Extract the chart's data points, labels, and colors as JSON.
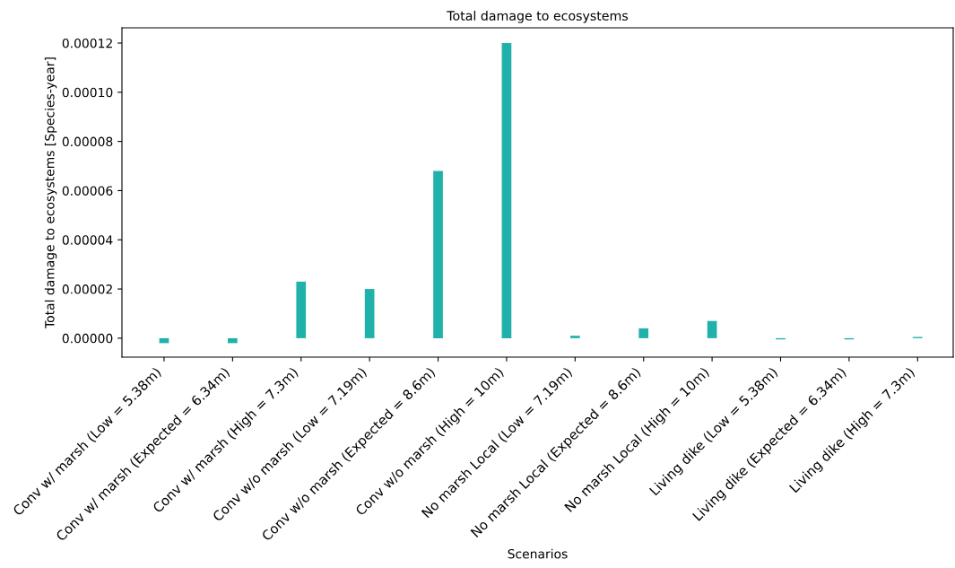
{
  "chart_data": {
    "type": "bar",
    "title": "Total damage to ecosystems",
    "xlabel": "Scenarios",
    "ylabel": "Total damage to ecosystems [Species-year]",
    "categories": [
      "Conv w/ marsh (Low = 5.38m)",
      "Conv w/ marsh (Expected = 6.34m)",
      "Conv w/ marsh (High = 7.3m)",
      "Conv w/o marsh (Low = 7.19m)",
      "Conv w/o marsh (Expected = 8.6m)",
      "Conv w/o marsh (High = 10m)",
      "No marsh Local (Low = 7.19m)",
      "No marsh Local (Expected = 8.6m)",
      "No marsh Local (High = 10m)",
      "Living dike (Low = 5.38m)",
      "Living dike (Expected = 6.34m)",
      "Living dike (High = 7.3m)"
    ],
    "values": [
      -2e-06,
      -2e-06,
      2.3e-05,
      2e-05,
      6.8e-05,
      0.00012,
      1e-06,
      4e-06,
      7e-06,
      -5e-07,
      -5e-07,
      5e-07
    ],
    "color": "#20b2aa",
    "ylim": [
      -7.7e-06,
      0.0001262
    ],
    "yticks": [
      {
        "value": 0,
        "label": "0.00000"
      },
      {
        "value": 2e-05,
        "label": "0.00002"
      },
      {
        "value": 4e-05,
        "label": "0.00004"
      },
      {
        "value": 6e-05,
        "label": "0.00006"
      },
      {
        "value": 8e-05,
        "label": "0.00008"
      },
      {
        "value": 0.0001,
        "label": "0.00010"
      },
      {
        "value": 0.00012,
        "label": "0.00012"
      }
    ],
    "grid": false,
    "legend": false
  }
}
